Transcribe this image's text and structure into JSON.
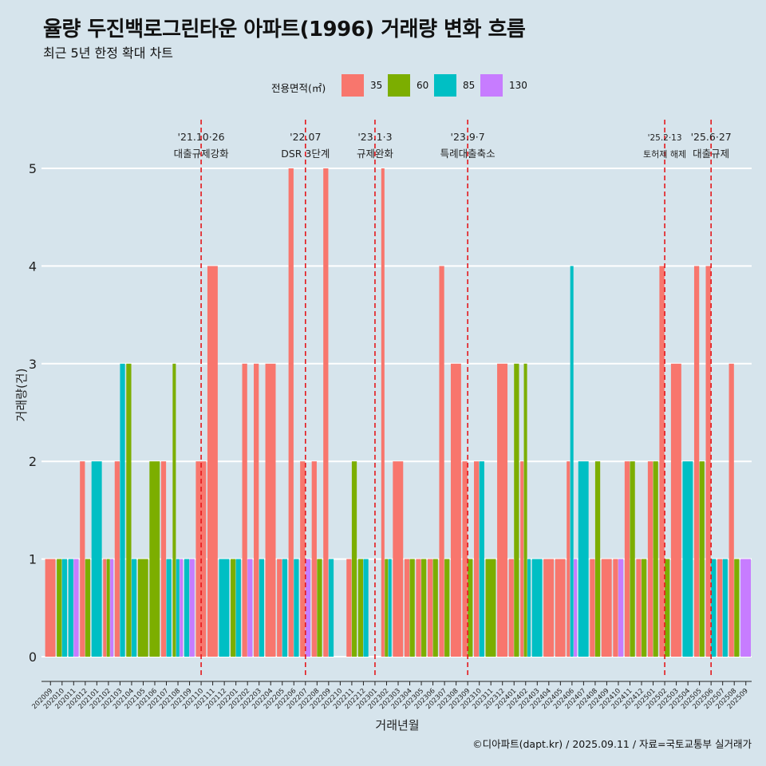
{
  "title": "율량 두진백로그린타운 아파트(1996) 거래량 변화 흐름",
  "subtitle": "최근 5년 한정 확대 차트",
  "caption": "©디아파트(dapt.kr) / 2025.09.11 / 자료=국토교통부 실거래가",
  "legend": {
    "title": "전용면적(㎡)",
    "items": [
      {
        "label": "35",
        "color": "#F8766D"
      },
      {
        "label": "60",
        "color": "#7CAE00"
      },
      {
        "label": "85",
        "color": "#00BFC4"
      },
      {
        "label": "130",
        "color": "#C77CFF"
      }
    ]
  },
  "chart_data": {
    "type": "bar",
    "xlabel": "거래년월",
    "ylabel": "거래량(건)",
    "ylim": [
      -0.2,
      5.5
    ],
    "yticks": [
      0,
      1,
      2,
      3,
      4,
      5
    ],
    "grid": true,
    "legend_position": "top",
    "categories": [
      "202009",
      "202010",
      "202011",
      "202012",
      "202101",
      "202102",
      "202103",
      "202104",
      "202105",
      "202106",
      "202107",
      "202108",
      "202109",
      "202110",
      "202111",
      "202112",
      "202201",
      "202202",
      "202203",
      "202204",
      "202205",
      "202206",
      "202207",
      "202208",
      "202209",
      "202210",
      "202211",
      "202212",
      "202301",
      "202302",
      "202303",
      "202304",
      "202305",
      "202306",
      "202307",
      "202308",
      "202309",
      "202310",
      "202311",
      "202312",
      "202401",
      "202402",
      "202403",
      "202404",
      "202405",
      "202406",
      "202407",
      "202408",
      "202409",
      "202410",
      "202411",
      "202412",
      "202501",
      "202502",
      "202503",
      "202504",
      "202505",
      "202506",
      "202507",
      "202508",
      "202509"
    ],
    "series": [
      {
        "name": "35",
        "color": "#F8766D",
        "values": [
          1,
          0,
          0,
          2,
          0,
          1,
          2,
          0,
          0,
          0,
          2,
          0,
          0,
          2,
          4,
          0,
          0,
          3,
          3,
          3,
          1,
          5,
          2,
          2,
          5,
          0,
          1,
          0,
          0,
          5,
          2,
          1,
          1,
          1,
          4,
          3,
          2,
          2,
          0,
          3,
          1,
          2,
          0,
          1,
          1,
          2,
          0,
          1,
          1,
          1,
          2,
          1,
          2,
          4,
          3,
          0,
          4,
          4,
          1,
          3,
          0
        ]
      },
      {
        "name": "60",
        "color": "#7CAE00",
        "values": [
          0,
          1,
          0,
          1,
          0,
          1,
          0,
          3,
          1,
          2,
          0,
          3,
          0,
          0,
          0,
          0,
          1,
          0,
          0,
          0,
          0,
          0,
          0,
          1,
          0,
          0,
          2,
          1,
          0,
          1,
          0,
          1,
          1,
          1,
          1,
          0,
          1,
          0,
          1,
          0,
          3,
          3,
          0,
          0,
          0,
          0,
          0,
          2,
          0,
          0,
          2,
          1,
          2,
          1,
          0,
          0,
          2,
          0,
          0,
          1,
          0
        ]
      },
      {
        "name": "85",
        "color": "#00BFC4",
        "values": [
          0,
          1,
          1,
          0,
          2,
          0,
          3,
          1,
          0,
          0,
          1,
          1,
          1,
          0,
          0,
          1,
          1,
          0,
          1,
          0,
          1,
          1,
          0,
          0,
          1,
          0,
          0,
          1,
          0,
          1,
          0,
          0,
          0,
          0,
          0,
          0,
          0,
          2,
          0,
          0,
          0,
          1,
          1,
          0,
          0,
          4,
          2,
          0,
          0,
          0,
          0,
          0,
          0,
          0,
          0,
          2,
          0,
          1,
          1,
          0,
          0
        ]
      },
      {
        "name": "130",
        "color": "#C77CFF",
        "values": [
          0,
          0,
          1,
          0,
          0,
          1,
          0,
          0,
          0,
          0,
          0,
          1,
          1,
          0,
          0,
          0,
          0,
          1,
          0,
          0,
          0,
          0,
          1,
          0,
          0,
          0,
          0,
          0,
          0,
          0,
          0,
          0,
          0,
          0,
          0,
          0,
          0,
          0,
          0,
          0,
          0,
          0,
          0,
          0,
          0,
          1,
          0,
          0,
          0,
          1,
          0,
          0,
          0,
          0,
          0,
          0,
          0,
          0,
          0,
          0,
          1
        ]
      }
    ],
    "annotations": [
      {
        "date": "'21.10·26",
        "label": "대출규제강화",
        "x": "202110"
      },
      {
        "date": "'22.07",
        "label": "DSR 3단계",
        "x": "202207"
      },
      {
        "date": "'23.1·3",
        "label": "규제완화",
        "x": "202301"
      },
      {
        "date": "'23.9·7",
        "label": "특례대출축소",
        "x": "202309"
      },
      {
        "date": "'25.2·13",
        "label": "토허제 해제",
        "x": "202502"
      },
      {
        "date": "'25.6·27",
        "label": "대출규제",
        "x": "202506"
      }
    ]
  }
}
